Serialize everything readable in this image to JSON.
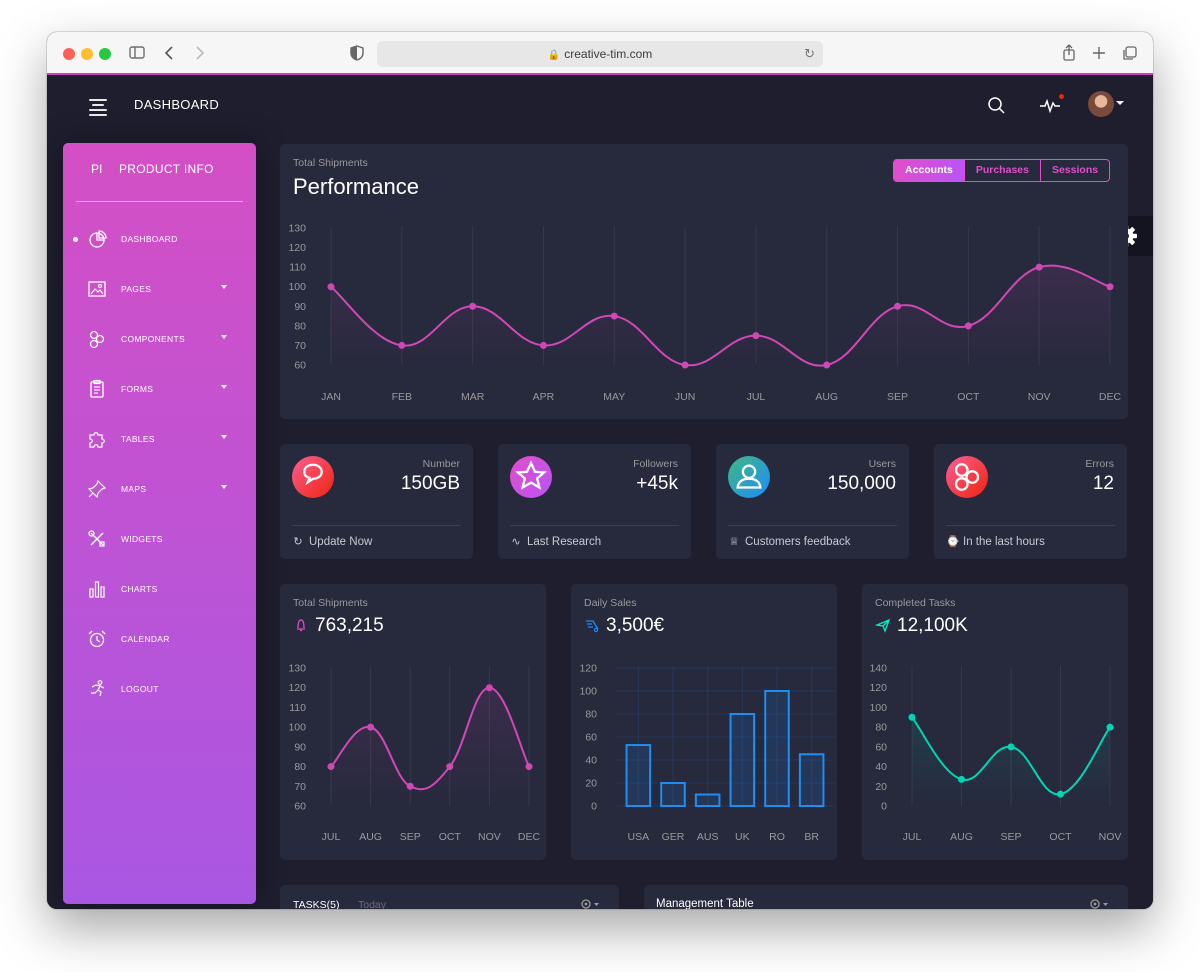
{
  "browser": {
    "url": "creative-tim.com",
    "lock_glyph": "🔒"
  },
  "navbar": {
    "title": "DASHBOARD"
  },
  "sidebar": {
    "logo_mini": "PI",
    "logo_normal": "PRODUCT INFO",
    "items": [
      {
        "label": "DASHBOARD",
        "icon": "chart-pie-icon",
        "active": true,
        "has_caret": false
      },
      {
        "label": "PAGES",
        "icon": "image-icon",
        "active": false,
        "has_caret": true
      },
      {
        "label": "COMPONENTS",
        "icon": "molecule-icon",
        "active": false,
        "has_caret": true
      },
      {
        "label": "FORMS",
        "icon": "clipboard-icon",
        "active": false,
        "has_caret": true
      },
      {
        "label": "TABLES",
        "icon": "puzzle-icon",
        "active": false,
        "has_caret": true
      },
      {
        "label": "MAPS",
        "icon": "pin-icon",
        "active": false,
        "has_caret": true
      },
      {
        "label": "WIDGETS",
        "icon": "tools-icon",
        "active": false,
        "has_caret": false
      },
      {
        "label": "CHARTS",
        "icon": "bar-chart-icon",
        "active": false,
        "has_caret": false
      },
      {
        "label": "CALENDAR",
        "icon": "alarm-clock-icon",
        "active": false,
        "has_caret": false
      },
      {
        "label": "LOGOUT",
        "icon": "runner-icon",
        "active": false,
        "has_caret": false
      }
    ]
  },
  "performance": {
    "category": "Total Shipments",
    "title": "Performance",
    "tabs": [
      "Accounts",
      "Purchases",
      "Sessions"
    ],
    "active_tab": 0
  },
  "stats": [
    {
      "category": "Number",
      "value": "150GB",
      "footer": "Update Now",
      "icon": "chat-icon",
      "footer_icon": "refresh-icon",
      "gradient": [
        "#fd5d93",
        "#ec250d"
      ]
    },
    {
      "category": "Followers",
      "value": "+45k",
      "footer": "Last Research",
      "icon": "star-icon",
      "footer_icon": "pulse-icon",
      "gradient": [
        "#e14eca",
        "#ba54f5"
      ]
    },
    {
      "category": "Users",
      "value": "150,000",
      "footer": "Customers feedback",
      "icon": "user-icon",
      "footer_icon": "trophy-icon",
      "gradient": [
        "#42b883",
        "#1d8cf8"
      ]
    },
    {
      "category": "Errors",
      "value": "12",
      "footer": "In the last hours",
      "icon": "molecule-icon",
      "footer_icon": "watch-icon",
      "gradient": [
        "#fd5d93",
        "#ec250d"
      ]
    }
  ],
  "mini_cards": [
    {
      "category": "Total Shipments",
      "value": "763,215",
      "icon": "bell-icon",
      "icon_color": "#e14eca"
    },
    {
      "category": "Daily Sales",
      "value": "3,500€",
      "icon": "delivery-icon",
      "icon_color": "#1d8cf8"
    },
    {
      "category": "Completed Tasks",
      "value": "12,100K",
      "icon": "send-icon",
      "icon_color": "#00f2c3"
    }
  ],
  "tasks": {
    "tab_tasks": "TASKS(5)",
    "tab_today": "Today"
  },
  "management": {
    "title": "Management Table"
  },
  "colors": {
    "background": "#1e1e2f",
    "card": "#27293d",
    "primary": "#e14eca",
    "info": "#1d8cf8",
    "success": "#00f2c3"
  },
  "chart_data": [
    {
      "type": "line",
      "categories": [
        "JAN",
        "FEB",
        "MAR",
        "APR",
        "MAY",
        "JUN",
        "JUL",
        "AUG",
        "SEP",
        "OCT",
        "NOV",
        "DEC"
      ],
      "values": [
        100,
        70,
        90,
        70,
        85,
        60,
        75,
        60,
        90,
        80,
        110,
        100
      ],
      "ylim": [
        60,
        130
      ],
      "yticks": [
        60,
        70,
        80,
        90,
        100,
        110,
        120,
        130
      ],
      "color": "#d048b6"
    },
    {
      "type": "line",
      "categories": [
        "JUL",
        "AUG",
        "SEP",
        "OCT",
        "NOV",
        "DEC"
      ],
      "values": [
        80,
        100,
        70,
        80,
        120,
        80
      ],
      "ylim": [
        60,
        130
      ],
      "yticks": [
        60,
        70,
        80,
        90,
        100,
        110,
        120,
        130
      ],
      "color": "#d048b6"
    },
    {
      "type": "bar",
      "categories": [
        "USA",
        "GER",
        "AUS",
        "UK",
        "RO",
        "BR"
      ],
      "values": [
        53,
        20,
        10,
        80,
        100,
        45
      ],
      "ylim": [
        0,
        120
      ],
      "yticks": [
        0,
        20,
        40,
        60,
        80,
        100,
        120
      ],
      "color": "#1f8ef1"
    },
    {
      "type": "line",
      "categories": [
        "JUL",
        "AUG",
        "SEP",
        "OCT",
        "NOV"
      ],
      "values": [
        90,
        27,
        60,
        12,
        80
      ],
      "ylim": [
        0,
        140
      ],
      "yticks": [
        0,
        20,
        40,
        60,
        80,
        100,
        120,
        140
      ],
      "color": "#00d6b4"
    }
  ]
}
